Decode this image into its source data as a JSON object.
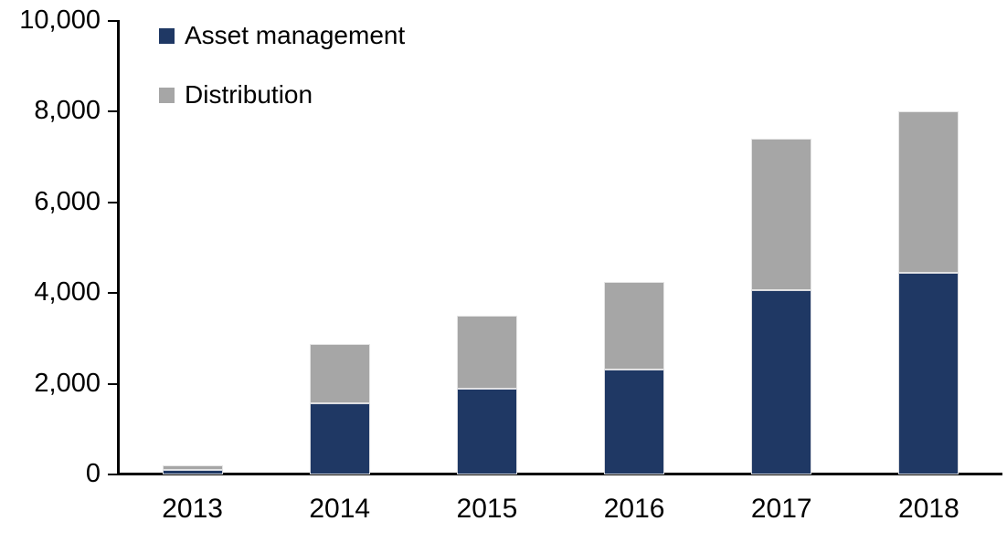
{
  "chart_data": {
    "type": "bar",
    "stacked": true,
    "title": "",
    "xlabel": "",
    "ylabel": "",
    "categories": [
      "2013",
      "2014",
      "2015",
      "2016",
      "2017",
      "2018"
    ],
    "series": [
      {
        "name": "Asset management",
        "color": "#1F3864",
        "values": [
          100,
          1560,
          1900,
          2320,
          4060,
          4440
        ]
      },
      {
        "name": "Distribution",
        "color": "#A6A6A6",
        "values": [
          100,
          1310,
          1600,
          1930,
          3340,
          3560
        ]
      }
    ],
    "totals": [
      200,
      2870,
      3500,
      4250,
      7400,
      8000
    ],
    "ylim": [
      0,
      10000
    ],
    "ytick_interval": 2000,
    "ytick_labels": [
      "0",
      "2,000",
      "4,000",
      "6,000",
      "8,000",
      "10,000"
    ],
    "grid": false,
    "legend_position": "top-left-inside",
    "axis_color": "#000000",
    "background_color": "#FFFFFF"
  }
}
